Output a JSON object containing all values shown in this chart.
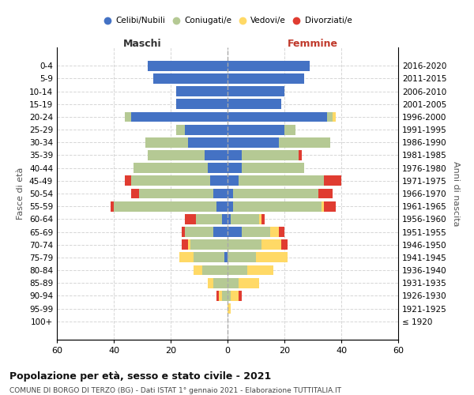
{
  "age_groups": [
    "100+",
    "95-99",
    "90-94",
    "85-89",
    "80-84",
    "75-79",
    "70-74",
    "65-69",
    "60-64",
    "55-59",
    "50-54",
    "45-49",
    "40-44",
    "35-39",
    "30-34",
    "25-29",
    "20-24",
    "15-19",
    "10-14",
    "5-9",
    "0-4"
  ],
  "birth_years": [
    "≤ 1920",
    "1921-1925",
    "1926-1930",
    "1931-1935",
    "1936-1940",
    "1941-1945",
    "1946-1950",
    "1951-1955",
    "1956-1960",
    "1961-1965",
    "1966-1970",
    "1971-1975",
    "1976-1980",
    "1981-1985",
    "1986-1990",
    "1991-1995",
    "1996-2000",
    "2001-2005",
    "2006-2010",
    "2011-2015",
    "2016-2020"
  ],
  "colors": {
    "celibe": "#4472c4",
    "coniugato": "#b5c994",
    "vedovo": "#ffd966",
    "divorziato": "#e03c31"
  },
  "maschi": {
    "celibe": [
      0,
      0,
      0,
      0,
      0,
      1,
      0,
      5,
      2,
      4,
      5,
      6,
      7,
      8,
      14,
      15,
      34,
      18,
      18,
      26,
      28
    ],
    "coniugato": [
      0,
      0,
      2,
      5,
      9,
      11,
      13,
      10,
      9,
      36,
      26,
      28,
      26,
      20,
      15,
      3,
      2,
      0,
      0,
      0,
      0
    ],
    "vedovo": [
      0,
      0,
      1,
      2,
      3,
      5,
      1,
      0,
      0,
      0,
      0,
      0,
      0,
      0,
      0,
      0,
      0,
      0,
      0,
      0,
      0
    ],
    "divorziato": [
      0,
      0,
      1,
      0,
      0,
      0,
      2,
      1,
      4,
      1,
      3,
      2,
      0,
      0,
      0,
      0,
      0,
      0,
      0,
      0,
      0
    ]
  },
  "femmine": {
    "nubile": [
      0,
      0,
      0,
      0,
      0,
      0,
      0,
      5,
      1,
      2,
      2,
      4,
      5,
      5,
      18,
      20,
      35,
      19,
      20,
      27,
      29
    ],
    "coniugata": [
      0,
      0,
      1,
      4,
      7,
      10,
      12,
      10,
      10,
      31,
      30,
      30,
      22,
      20,
      18,
      4,
      2,
      0,
      0,
      0,
      0
    ],
    "vedova": [
      0,
      1,
      3,
      7,
      9,
      11,
      7,
      3,
      1,
      1,
      0,
      0,
      0,
      0,
      0,
      0,
      1,
      0,
      0,
      0,
      0
    ],
    "divorziata": [
      0,
      0,
      1,
      0,
      0,
      0,
      2,
      2,
      1,
      4,
      5,
      6,
      0,
      1,
      0,
      0,
      0,
      0,
      0,
      0,
      0
    ]
  },
  "title": "Popolazione per età, sesso e stato civile - 2021",
  "subtitle": "COMUNE DI BORGO DI TERZO (BG) - Dati ISTAT 1° gennaio 2021 - Elaborazione TUTTITALIA.IT",
  "xlabel_left": "Maschi",
  "xlabel_right": "Femmine",
  "ylabel_left": "Fasce di età",
  "ylabel_right": "Anni di nascita",
  "xlim": 60,
  "legend_labels": [
    "Celibi/Nubili",
    "Coniugati/e",
    "Vedovi/e",
    "Divorziati/e"
  ],
  "background_color": "#ffffff",
  "grid_color": "#cccccc"
}
